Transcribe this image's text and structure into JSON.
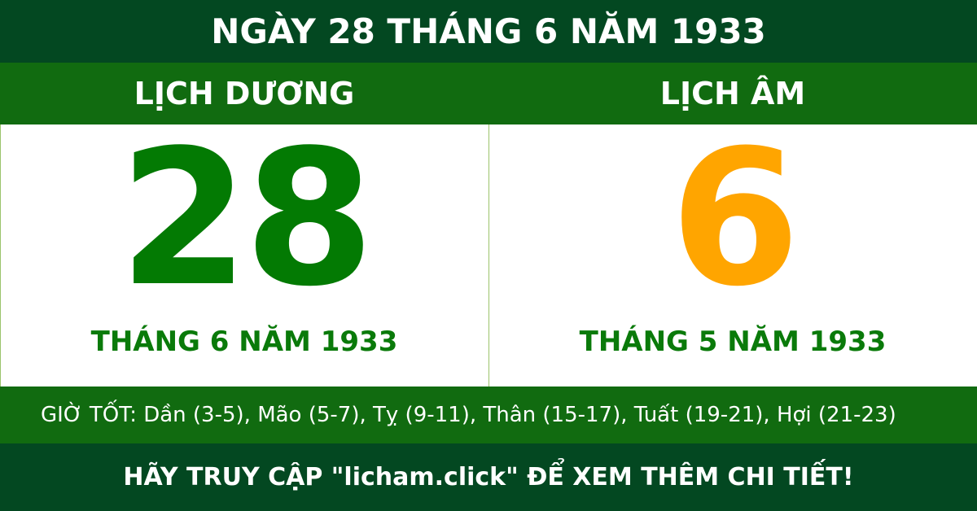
{
  "header": {
    "title": "NGÀY 28 THÁNG 6 NĂM 1933"
  },
  "solar": {
    "label": "LỊCH DƯƠNG",
    "day": "28",
    "month_year": "THÁNG 6 NĂM 1933"
  },
  "lunar": {
    "label": "LỊCH ÂM",
    "day": "6",
    "month_year": "THÁNG 5 NĂM 1933"
  },
  "good_hours": "GIỜ TỐT: Dần (3-5), Mão (5-7), Tỵ (9-11), Thân (15-17), Tuất (19-21), Hợi (21-23)",
  "footer": {
    "cta": "HÃY TRUY CẬP \"licham.click\" ĐỂ XEM THÊM CHI TIẾT!"
  },
  "colors": {
    "dark_green": "#034821",
    "green": "#116b10",
    "solar_day": "#037a03",
    "lunar_day": "#ffa500"
  }
}
